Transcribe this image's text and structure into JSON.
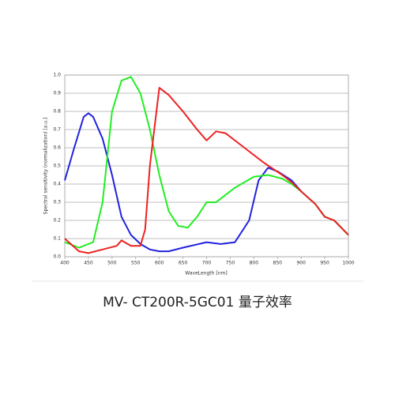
{
  "chart_data": {
    "type": "line",
    "title": "MV- CT200R-5GC01 量子效率",
    "x_label": "WaveLength [nm]",
    "y_label": "Spectral sensitivity (normalization) [a.u.]",
    "xlim": [
      400,
      1000
    ],
    "xticks": [
      400,
      450,
      500,
      550,
      600,
      650,
      700,
      750,
      800,
      850,
      900,
      950,
      1000
    ],
    "ylim": [
      0,
      1
    ],
    "yticks": [
      {
        "value": 0,
        "label": "0.0"
      },
      0.1,
      0.2,
      0.3,
      0.4,
      0.5,
      0.6,
      0.7,
      0.8,
      0.9,
      {
        "value": 1,
        "label": "1.0"
      }
    ],
    "grid": true,
    "series": [
      {
        "color": "#2222dd",
        "x": [
          400,
          420,
          440,
          450,
          460,
          480,
          500,
          520,
          540,
          560,
          580,
          600,
          620,
          650,
          700,
          730,
          760,
          790,
          810,
          830,
          850,
          880,
          900,
          930,
          950,
          970,
          1000
        ],
        "values": [
          0.42,
          0.6,
          0.77,
          0.79,
          0.77,
          0.65,
          0.45,
          0.22,
          0.12,
          0.07,
          0.04,
          0.03,
          0.03,
          0.05,
          0.08,
          0.07,
          0.08,
          0.2,
          0.42,
          0.49,
          0.47,
          0.42,
          0.36,
          0.29,
          0.22,
          0.2,
          0.12
        ]
      },
      {
        "color": "#22ee22",
        "x": [
          400,
          430,
          460,
          480,
          500,
          520,
          540,
          560,
          580,
          600,
          620,
          640,
          660,
          680,
          700,
          720,
          760,
          800,
          830,
          860,
          880,
          900,
          930,
          950,
          970,
          1000
        ],
        "values": [
          0.08,
          0.05,
          0.08,
          0.3,
          0.8,
          0.97,
          0.99,
          0.9,
          0.7,
          0.45,
          0.25,
          0.17,
          0.16,
          0.22,
          0.3,
          0.3,
          0.38,
          0.44,
          0.45,
          0.43,
          0.4,
          0.36,
          0.29,
          0.22,
          0.2,
          0.12
        ]
      },
      {
        "color": "#ee2222",
        "x": [
          400,
          430,
          450,
          480,
          510,
          520,
          540,
          560,
          570,
          580,
          600,
          620,
          650,
          680,
          700,
          720,
          740,
          780,
          820,
          860,
          880,
          900,
          930,
          950,
          970,
          1000
        ],
        "values": [
          0.1,
          0.03,
          0.02,
          0.04,
          0.06,
          0.09,
          0.06,
          0.06,
          0.15,
          0.5,
          0.93,
          0.89,
          0.8,
          0.7,
          0.64,
          0.69,
          0.68,
          0.6,
          0.52,
          0.45,
          0.41,
          0.36,
          0.29,
          0.22,
          0.2,
          0.12
        ]
      }
    ]
  }
}
